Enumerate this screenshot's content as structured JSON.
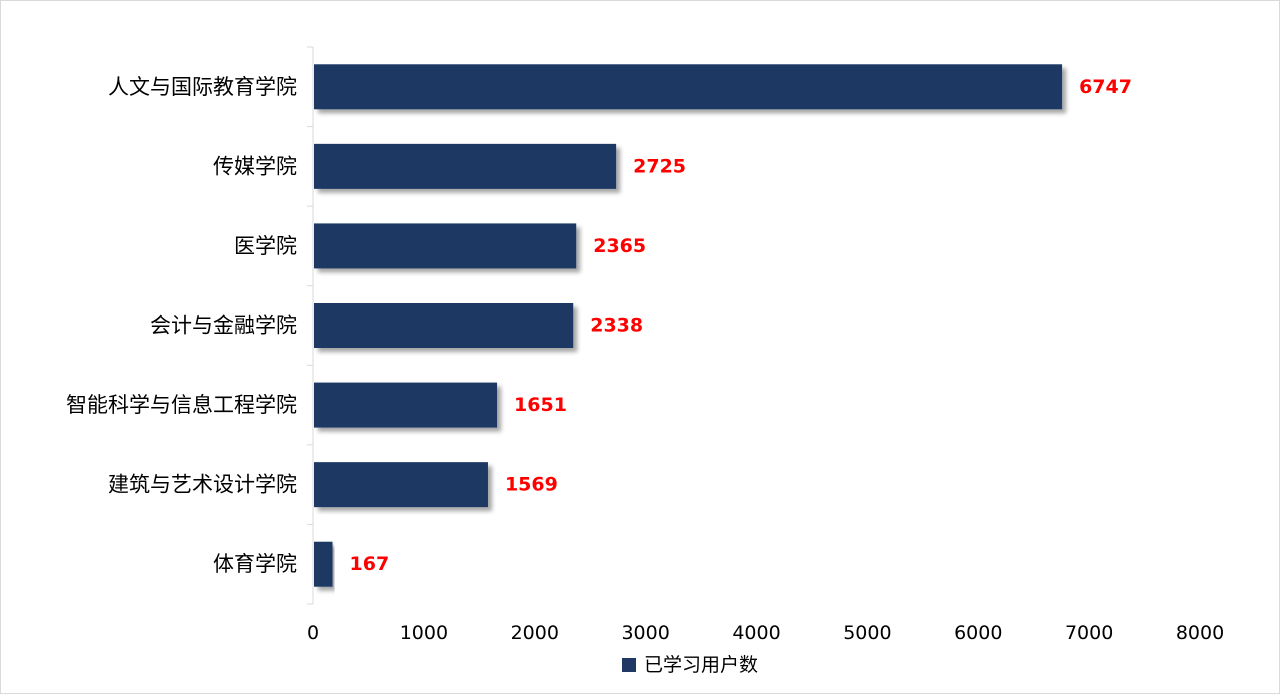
{
  "chart_data": {
    "type": "bar",
    "orientation": "horizontal",
    "categories": [
      "人文与国际教育学院",
      "传媒学院",
      "医学院",
      "会计与金融学院",
      "智能科学与信息工程学院",
      "建筑与艺术设计学院",
      "体育学院"
    ],
    "series": [
      {
        "name": "已学习用户数",
        "values": [
          6747,
          2725,
          2365,
          2338,
          1651,
          1569,
          167
        ],
        "color": "#1f3864"
      }
    ],
    "xlim": [
      0,
      8000
    ],
    "xticks": [
      0,
      1000,
      2000,
      3000,
      4000,
      5000,
      6000,
      7000,
      8000
    ],
    "grid": false,
    "legend_position": "bottom",
    "data_label_color": "#ff0000"
  }
}
